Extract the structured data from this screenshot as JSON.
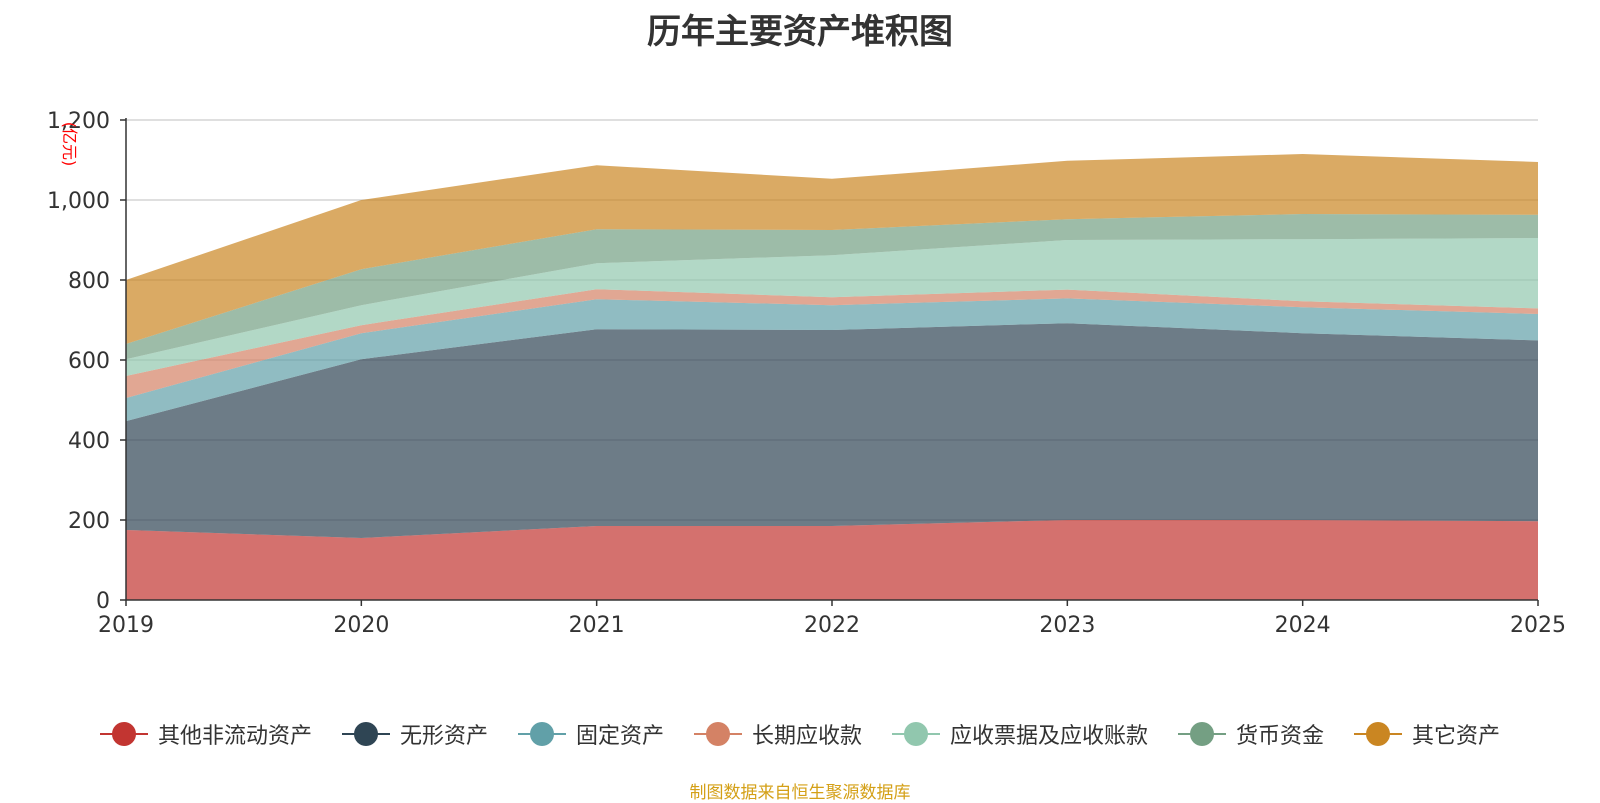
{
  "chart_data": {
    "type": "area",
    "stacked": true,
    "title": "历年主要资产堆积图",
    "ylabel": "(亿元)",
    "xlabel": "",
    "x": [
      "2019",
      "2020",
      "2021",
      "2022",
      "2023",
      "2024",
      "2025"
    ],
    "ylim": [
      0,
      1200
    ],
    "yticks": [
      0,
      200,
      400,
      600,
      800,
      1000,
      1200
    ],
    "ytick_labels": [
      "0",
      "200",
      "400",
      "600",
      "800",
      "1,000",
      "1,200"
    ],
    "grid": true,
    "legend_position": "bottom",
    "series": [
      {
        "name": "其他非流动资产",
        "color": "#c23531",
        "values": [
          175,
          155,
          185,
          185,
          200,
          200,
          197
        ]
      },
      {
        "name": "无形资产",
        "color": "#2f4554",
        "values": [
          272,
          447,
          492,
          490,
          492,
          467,
          452
        ]
      },
      {
        "name": "固定资产",
        "color": "#61a0a8",
        "values": [
          58,
          65,
          75,
          62,
          62,
          65,
          66
        ]
      },
      {
        "name": "长期应收款",
        "color": "#d48265",
        "values": [
          55,
          20,
          25,
          20,
          22,
          15,
          14
        ]
      },
      {
        "name": "应收票据及应收账款",
        "color": "#91c7ae",
        "values": [
          42,
          50,
          65,
          105,
          124,
          155,
          176
        ]
      },
      {
        "name": "货币资金",
        "color": "#749f83",
        "values": [
          38,
          90,
          85,
          63,
          52,
          63,
          58
        ]
      },
      {
        "name": "其它资产",
        "color": "#ca8622",
        "values": [
          160,
          173,
          160,
          128,
          146,
          150,
          132
        ]
      }
    ]
  },
  "source": "制图数据来自恒生聚源数据库"
}
